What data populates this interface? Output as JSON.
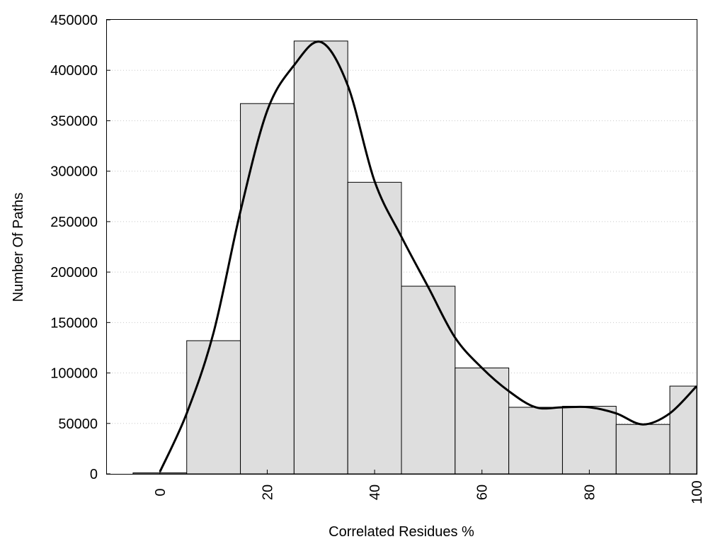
{
  "chart_data": {
    "type": "bar",
    "title": "",
    "xlabel": "Correlated Residues %",
    "ylabel": "Number Of Paths",
    "xlim": [
      -10,
      100
    ],
    "ylim": [
      0,
      450000
    ],
    "bin_width": 10,
    "grid": "horizontal dotted",
    "x_ticks": [
      0,
      20,
      40,
      60,
      80,
      100
    ],
    "x_tick_labels": [
      "0",
      "20",
      "40",
      "60",
      "80",
      "100"
    ],
    "y_ticks": [
      0,
      50000,
      100000,
      150000,
      200000,
      250000,
      300000,
      350000,
      400000,
      450000
    ],
    "y_tick_labels": [
      "0",
      "50000",
      "100000",
      "150000",
      "200000",
      "250000",
      "300000",
      "350000",
      "400000",
      "450000"
    ],
    "x": [
      0,
      10,
      20,
      30,
      40,
      50,
      60,
      70,
      80,
      90,
      100
    ],
    "values": [
      1000,
      132000,
      367000,
      429000,
      289000,
      186000,
      105000,
      66000,
      67000,
      49000,
      87000
    ],
    "curve": {
      "type": "line",
      "x": [
        0,
        5,
        10,
        15,
        20,
        25,
        30,
        35,
        40,
        45,
        50,
        55,
        60,
        65,
        70,
        75,
        80,
        85,
        90,
        95,
        100
      ],
      "y": [
        2000,
        60000,
        140000,
        260000,
        360000,
        405000,
        428000,
        385000,
        290000,
        235000,
        185000,
        135000,
        105000,
        82000,
        66000,
        66000,
        66000,
        60000,
        49000,
        60000,
        87000
      ]
    },
    "colors": {
      "bar_fill": "#dedede",
      "bar_stroke": "#000000",
      "curve": "#000000",
      "grid": "#c8c8c8"
    }
  }
}
